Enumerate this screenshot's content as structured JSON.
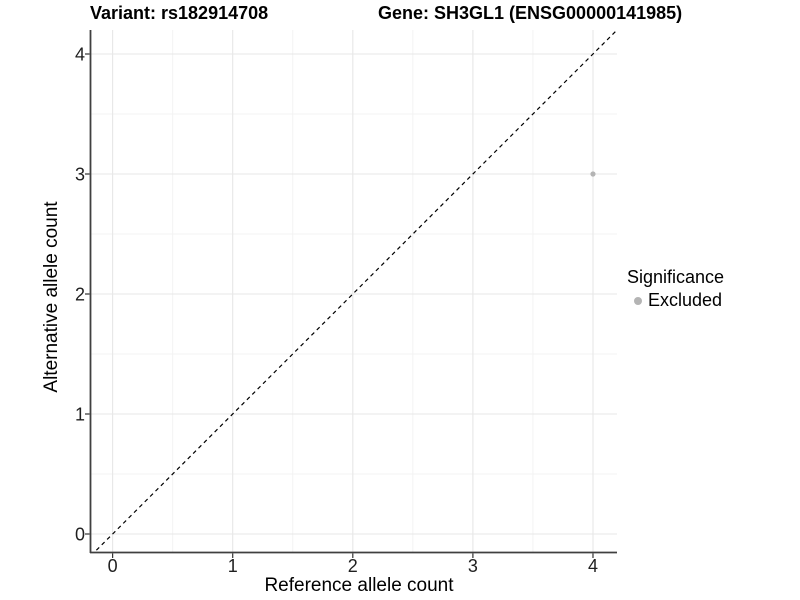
{
  "chart_data": {
    "type": "scatter",
    "title_left": "Variant: rs182914708",
    "title_right": "Gene: SH3GL1 (ENSG00000141985)",
    "xlabel": "Reference allele count",
    "ylabel": "Alternative allele count",
    "xlim": [
      -0.18,
      4.2
    ],
    "ylim": [
      -0.15,
      4.2
    ],
    "x_ticks": [
      0,
      1,
      2,
      3,
      4
    ],
    "y_ticks": [
      0,
      1,
      2,
      3,
      4
    ],
    "x_minor_ticks": [
      0.5,
      1.5,
      2.5,
      3.5
    ],
    "y_minor_ticks": [
      0.5,
      1.5,
      2.5,
      3.5
    ],
    "grid": true,
    "identity_line": {
      "slope": 1,
      "intercept": 0,
      "style": "dashed",
      "color": "#000000"
    },
    "series": [
      {
        "name": "Excluded",
        "color": "#b4b4b4",
        "point_radius": 2.6,
        "points": [
          {
            "x": 4,
            "y": 3
          }
        ]
      }
    ],
    "legend": {
      "title": "Significance",
      "position": "right",
      "items": [
        {
          "label": "Excluded",
          "color": "#b4b4b4"
        }
      ]
    }
  },
  "colors": {
    "background": "#ffffff",
    "grid_major": "#e7e7e7",
    "grid_minor": "#f3f3f3",
    "axis_line": "#404040",
    "tick_mark": "#333333",
    "tick_label": "#1f1f1f"
  }
}
